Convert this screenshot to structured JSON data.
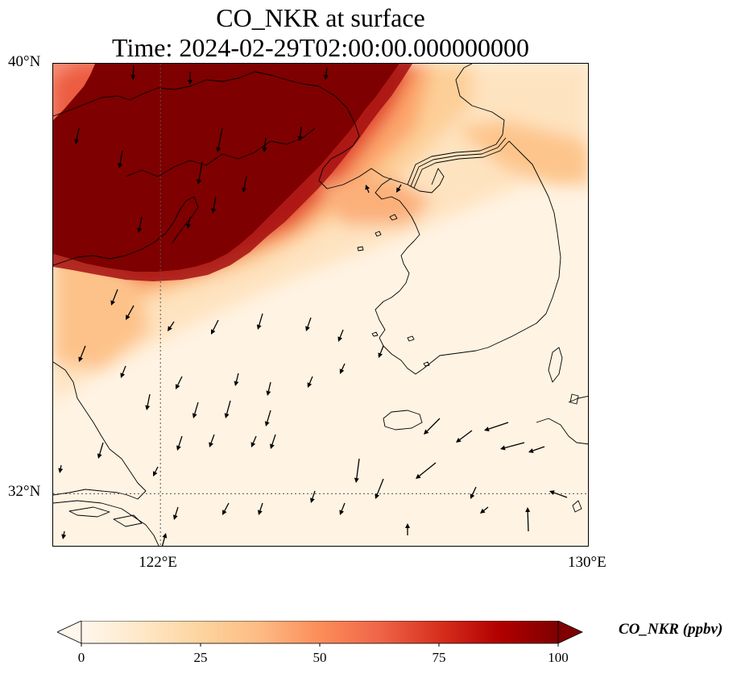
{
  "title": {
    "line1": "CO_NKR at surface",
    "line2": "Time: 2024-02-29T02:00:00.000000000"
  },
  "map": {
    "extent": {
      "lon_min": 120,
      "lon_max": 130,
      "lat_min": 31,
      "lat_max": 40
    },
    "lat_ticks": [
      {
        "value": 40,
        "label": "40°N"
      },
      {
        "value": 32,
        "label": "32°N"
      }
    ],
    "lon_ticks": [
      {
        "value": 122,
        "label": "122°E"
      },
      {
        "value": 130,
        "label": "130°E"
      }
    ],
    "gridlines": {
      "lon": [
        122
      ],
      "lat": [
        32
      ]
    },
    "variable": "CO_NKR",
    "level": "surface",
    "wind_vectors": "shown"
  },
  "colorbar": {
    "label": "CO_NKR (ppbv)",
    "min": 0,
    "max": 100,
    "extend": "both",
    "ticks": [
      {
        "value": 0,
        "label": "0"
      },
      {
        "value": 25,
        "label": "25"
      },
      {
        "value": 50,
        "label": "50"
      },
      {
        "value": 75,
        "label": "75"
      },
      {
        "value": 100,
        "label": "100"
      }
    ],
    "colormap": [
      "#fff7ec",
      "#fee8c8",
      "#fdd49e",
      "#fdbb84",
      "#fc8d59",
      "#ef6548",
      "#d7301f",
      "#b30000",
      "#7f0000"
    ]
  }
}
